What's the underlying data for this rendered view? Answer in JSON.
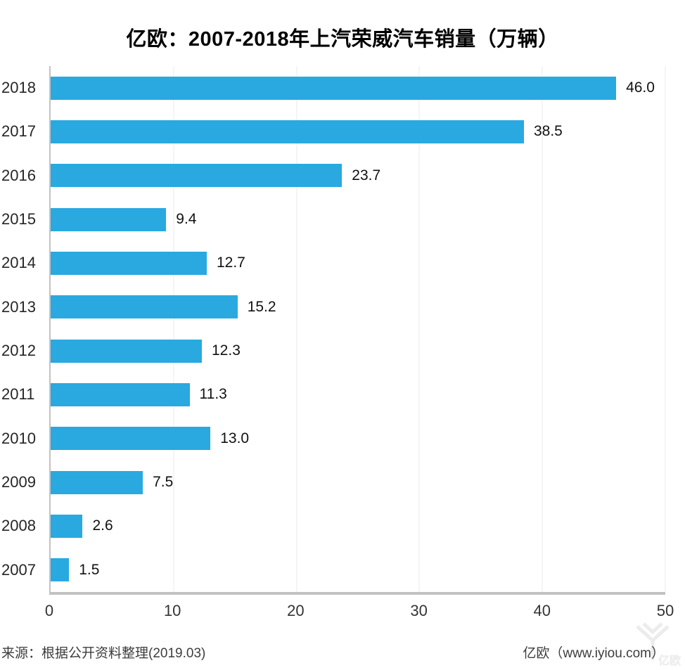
{
  "title": "亿欧：2007-2018年上汽荣威汽车销量（万辆）",
  "footer": {
    "source_note": "来源：根据公开资料整理(2019.03)",
    "brand_credit": "亿欧（www.iyiou.com）",
    "watermark_text": "亿欧"
  },
  "colors": {
    "bar": "#29A9DF",
    "axis_line": "#C2C2C2",
    "gridline": "#EBEBEB",
    "label_text": "#262626",
    "footer_text": "#3D3D3D",
    "watermark": "#ECECEC"
  },
  "chart_data": {
    "type": "bar",
    "orientation": "horizontal",
    "title": "亿欧：2007-2018年上汽荣威汽车销量（万辆）",
    "unit": "万辆",
    "categories": [
      "2018",
      "2017",
      "2016",
      "2015",
      "2014",
      "2013",
      "2012",
      "2011",
      "2010",
      "2009",
      "2008",
      "2007"
    ],
    "values": [
      46.0,
      38.5,
      23.7,
      9.4,
      12.7,
      15.2,
      12.3,
      11.3,
      13.0,
      7.5,
      2.6,
      1.5
    ],
    "value_labels": [
      "46.0",
      "38.5",
      "23.7",
      "9.4",
      "12.7",
      "15.2",
      "12.3",
      "11.3",
      "13.0",
      "7.5",
      "2.6",
      "1.5"
    ],
    "xlabel": "",
    "ylabel": "",
    "xlim": [
      0,
      50
    ],
    "x_ticks": [
      0,
      10,
      20,
      30,
      40,
      50
    ],
    "grid": true,
    "legend": false
  }
}
